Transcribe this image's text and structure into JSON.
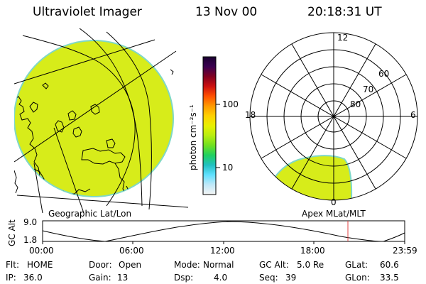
{
  "header": {
    "title": "Ultraviolet Imager",
    "date": "13 Nov 00",
    "time": "20:18:31 UT"
  },
  "colors": {
    "image_fill": "#d7ec1a",
    "image_edge": "#7fd8c6",
    "marker": "#e04040"
  },
  "colorbar": {
    "label": "photon cm⁻²s⁻¹",
    "ticks": [
      "100",
      "10"
    ],
    "stops": [
      "#1a0030",
      "#3a0050",
      "#800020",
      "#cc1010",
      "#ff5000",
      "#ff9a00",
      "#ffd000",
      "#e8f000",
      "#b8ee10",
      "#70e020",
      "#20d060",
      "#20c0c0",
      "#60e0ff",
      "#c0e8f8",
      "#f4f4f4"
    ]
  },
  "left_map": {
    "caption": "Geographic Lat/Lon"
  },
  "polar": {
    "caption": "Apex MLat/MLT",
    "mlt_labels": {
      "top": "12",
      "left": "18",
      "right": "6",
      "bottom": "0"
    },
    "lat_labels": [
      "60",
      "70",
      "80"
    ]
  },
  "altitude_plot": {
    "ylabel": "GC Alt",
    "yticks": [
      "9.0",
      "1.8"
    ],
    "xticks": [
      "00:00",
      "06:00",
      "12:00",
      "18:00",
      "23:59"
    ],
    "marker_time": "20:18"
  },
  "footer": {
    "rows": [
      [
        {
          "label": "Flt:",
          "value": "HOME"
        },
        {
          "label": "Door:",
          "value": "Open"
        },
        {
          "label": "Mode:",
          "value": "Normal"
        },
        {
          "label": "GC Alt:",
          "value": "5.0 Re"
        },
        {
          "label": "GLat:",
          "value": "60.6"
        }
      ],
      [
        {
          "label": "IP:",
          "value": "36.0"
        },
        {
          "label": "Gain:",
          "value": "13"
        },
        {
          "label": "Dsp:",
          "value": "4.0"
        },
        {
          "label": "Seq:",
          "value": "39"
        },
        {
          "label": "GLon:",
          "value": "33.5"
        }
      ]
    ]
  }
}
